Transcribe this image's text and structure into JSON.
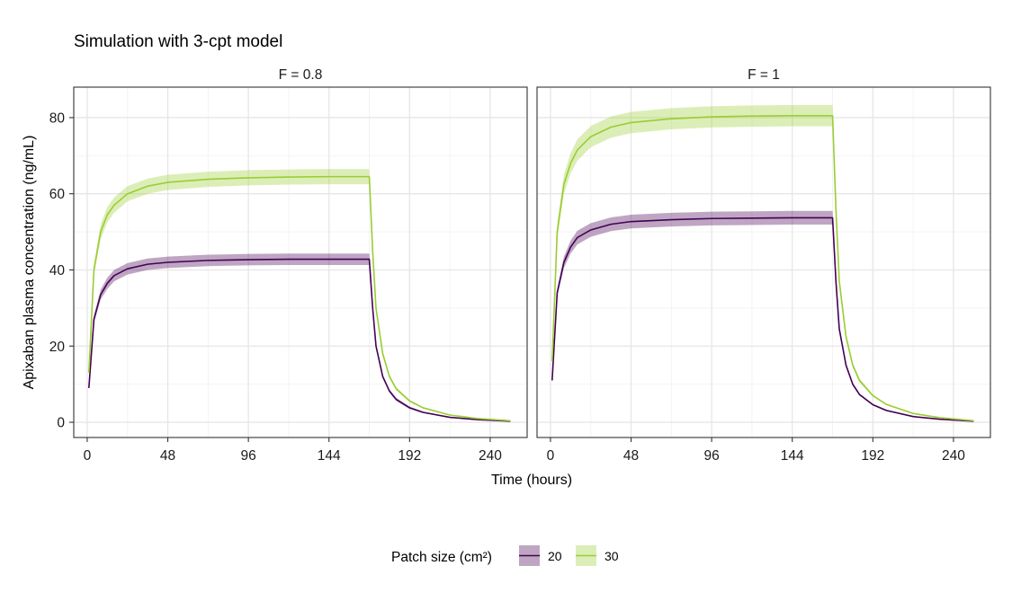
{
  "chart_data": {
    "type": "line",
    "title": "Simulation with 3-cpt model",
    "xlabel": "Time (hours)",
    "ylabel": "Apixaban plasma concentration (ng/mL)",
    "xlim": [
      -8,
      262
    ],
    "ylim": [
      -4,
      88
    ],
    "xticks": [
      0,
      48,
      96,
      144,
      192,
      240
    ],
    "yticks": [
      0,
      20,
      40,
      60,
      80
    ],
    "grid": true,
    "legend": {
      "title": "Patch size (cm²)",
      "placement": "bottom",
      "entries": [
        "20",
        "30"
      ]
    },
    "series_colors": {
      "20": "#440154",
      "30": "#9ACD32"
    },
    "panels": [
      {
        "label": "F = 0.8",
        "series": [
          {
            "name": "20",
            "x": [
              1,
              4,
              8,
              12,
              16,
              24,
              36,
              48,
              72,
              96,
              120,
              144,
              168,
              170,
              172,
              176,
              180,
              184,
              192,
              200,
              216,
              232,
              252
            ],
            "values": [
              9,
              27,
              33.5,
              36.5,
              38.5,
              40.3,
              41.5,
              42,
              42.5,
              42.7,
              42.8,
              42.8,
              42.8,
              30,
              20,
              12,
              8.2,
              6,
              3.8,
              2.6,
              1.3,
              0.7,
              0.3
            ],
            "band_low": [
              8.7,
              26,
              32.2,
              35,
              37,
              38.8,
              40,
              40.5,
              41,
              41.2,
              41.3,
              41.3,
              41.3,
              29,
              19.2,
              11.5,
              7.8,
              5.6,
              3.5,
              2.4,
              1.2,
              0.6,
              0.2
            ],
            "band_high": [
              9.3,
              28,
              34.8,
              38,
              40,
              41.8,
              43,
              43.5,
              44,
              44.2,
              44.3,
              44.3,
              44.3,
              31,
              20.8,
              12.5,
              8.6,
              6.4,
              4.1,
              2.8,
              1.4,
              0.8,
              0.4
            ]
          },
          {
            "name": "30",
            "x": [
              1,
              4,
              8,
              12,
              16,
              24,
              36,
              48,
              72,
              96,
              120,
              144,
              168,
              170,
              172,
              176,
              180,
              184,
              192,
              200,
              216,
              232,
              252
            ],
            "values": [
              13,
              40,
              50,
              54.5,
              57,
              60,
              62,
              63,
              63.8,
              64.2,
              64.4,
              64.5,
              64.5,
              45,
              30,
              18,
              12,
              8.8,
              5.6,
              3.8,
              1.9,
              1,
              0.4
            ],
            "band_low": [
              12.5,
              38.5,
              48,
              52.5,
              55,
              58,
              60,
              61,
              61.8,
              62.2,
              62.4,
              62.5,
              62.5,
              43.5,
              29,
              17.3,
              11.5,
              8.4,
              5.3,
              3.6,
              1.8,
              0.9,
              0.3
            ],
            "band_high": [
              13.5,
              41.5,
              52,
              56.5,
              59,
              62,
              64,
              65,
              65.8,
              66.2,
              66.4,
              66.5,
              66.5,
              46.5,
              31,
              18.7,
              12.5,
              9.2,
              5.9,
              4,
              2,
              1.1,
              0.5
            ]
          }
        ]
      },
      {
        "label": "F = 1",
        "series": [
          {
            "name": "20",
            "x": [
              1,
              4,
              8,
              12,
              16,
              24,
              36,
              48,
              72,
              96,
              120,
              144,
              168,
              170,
              172,
              176,
              180,
              184,
              192,
              200,
              216,
              232,
              252
            ],
            "values": [
              11,
              34,
              42,
              46,
              48.5,
              50.5,
              52,
              52.7,
              53.2,
              53.5,
              53.6,
              53.7,
              53.7,
              37,
              24.5,
              15,
              10,
              7.3,
              4.6,
              3.1,
              1.5,
              0.8,
              0.3
            ],
            "band_low": [
              10.7,
              33,
              40.5,
              44.3,
              46.7,
              48.7,
              50.2,
              50.9,
              51.4,
              51.7,
              51.8,
              51.9,
              51.9,
              35.8,
              23.6,
              14.4,
              9.6,
              7,
              4.4,
              2.9,
              1.4,
              0.7,
              0.2
            ],
            "band_high": [
              11.3,
              35,
              43.5,
              47.7,
              50.3,
              52.3,
              53.8,
              54.5,
              55,
              55.3,
              55.4,
              55.5,
              55.5,
              38.2,
              25.4,
              15.6,
              10.4,
              7.6,
              4.8,
              3.3,
              1.6,
              0.9,
              0.4
            ]
          },
          {
            "name": "30",
            "x": [
              1,
              4,
              8,
              12,
              16,
              24,
              36,
              48,
              72,
              96,
              120,
              144,
              168,
              170,
              172,
              176,
              180,
              184,
              192,
              200,
              216,
              232,
              252
            ],
            "values": [
              16,
              50,
              62.5,
              68,
              71.5,
              75,
              77.5,
              78.7,
              79.7,
              80.2,
              80.4,
              80.5,
              80.5,
              56,
              37,
              22.5,
              15,
              11,
              7,
              4.7,
              2.3,
              1.2,
              0.4
            ],
            "band_low": [
              15.4,
              48,
              60,
              65.3,
              68.7,
              72.2,
              74.7,
              75.9,
              76.9,
              77.4,
              77.6,
              77.7,
              77.7,
              54,
              35.6,
              21.6,
              14.4,
              10.5,
              6.7,
              4.5,
              2.2,
              1.1,
              0.3
            ],
            "band_high": [
              16.6,
              52,
              65,
              70.7,
              74.3,
              77.8,
              80.3,
              81.5,
              82.5,
              83,
              83.2,
              83.3,
              83.3,
              58,
              38.4,
              23.4,
              15.6,
              11.5,
              7.3,
              4.9,
              2.4,
              1.3,
              0.5
            ]
          }
        ]
      }
    ]
  }
}
